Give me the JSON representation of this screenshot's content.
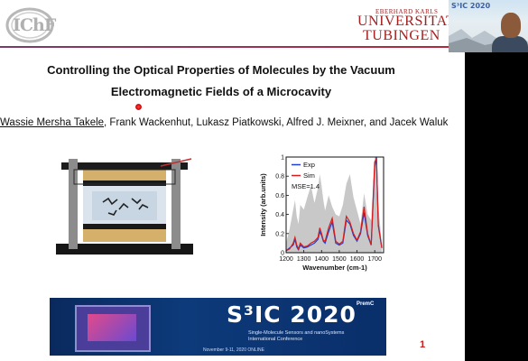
{
  "header": {
    "lab_logo_text": "IChF",
    "university_small": "EBERHARD KARLS",
    "university_line1": "UNIVERSITAT",
    "university_line2": "TUBINGEN"
  },
  "webcam": {
    "overlay_logo": "S³IC 2020"
  },
  "slide": {
    "title_line1": "Controlling the Optical Properties of Molecules by the Vacuum",
    "title_line2": "Electromagnetic Fields of a Microcavity",
    "author_first": "Wassie Mersha Takele",
    "author_rest": ", Frank Wackenhut, Lukasz Piatkowski, Alfred J. Meixner, and Jacek Waluk",
    "page_number": "1"
  },
  "banner": {
    "brand": "S³IC 2020",
    "subtitle_line1": "Single-Molecule Sensors and nanoSystems",
    "subtitle_line2": "International Conference",
    "date": "November 9-11, 2020   ONLINE",
    "partner": "PremC"
  },
  "chart_data": {
    "type": "line",
    "xlabel": "Wavenumber (cm-1)",
    "ylabel": "Intensity (arb.units)",
    "xlim": [
      1200,
      1750
    ],
    "ylim": [
      0,
      1.0
    ],
    "x_ticks": [
      1200,
      1300,
      1400,
      1500,
      1600,
      1700
    ],
    "y_ticks": [
      0,
      0.2,
      0.4,
      0.6,
      0.8,
      1.0
    ],
    "annotation": "MSE=1.4",
    "legend_position": "top-left",
    "colors": {
      "exp": "#1f3fd4",
      "sim": "#d81b1b",
      "background": "#c8c8c8"
    },
    "x": [
      1200,
      1220,
      1240,
      1250,
      1260,
      1270,
      1280,
      1300,
      1320,
      1340,
      1360,
      1380,
      1390,
      1400,
      1410,
      1420,
      1440,
      1460,
      1480,
      1500,
      1520,
      1540,
      1560,
      1580,
      1600,
      1620,
      1640,
      1660,
      1680,
      1700,
      1710,
      1720,
      1740
    ],
    "series": [
      {
        "name": "Exp",
        "values": [
          0.02,
          0.05,
          0.08,
          0.14,
          0.06,
          0.03,
          0.08,
          0.05,
          0.06,
          0.08,
          0.1,
          0.14,
          0.22,
          0.18,
          0.12,
          0.1,
          0.22,
          0.32,
          0.1,
          0.08,
          0.1,
          0.34,
          0.3,
          0.18,
          0.12,
          0.2,
          0.42,
          0.18,
          0.08,
          0.9,
          1.0,
          0.3,
          0.05
        ]
      },
      {
        "name": "Sim",
        "values": [
          0.02,
          0.04,
          0.1,
          0.16,
          0.08,
          0.04,
          0.1,
          0.06,
          0.07,
          0.1,
          0.12,
          0.16,
          0.26,
          0.2,
          0.13,
          0.12,
          0.26,
          0.36,
          0.12,
          0.09,
          0.12,
          0.38,
          0.32,
          0.2,
          0.13,
          0.22,
          0.48,
          0.2,
          0.08,
          0.95,
          0.98,
          0.28,
          0.05
        ]
      },
      {
        "name": "",
        "values": [
          0.1,
          0.25,
          0.45,
          0.55,
          0.38,
          0.3,
          0.5,
          0.45,
          0.58,
          0.7,
          0.52,
          0.68,
          0.82,
          0.7,
          0.55,
          0.44,
          0.6,
          0.48,
          0.4,
          0.38,
          0.5,
          0.72,
          0.82,
          0.58,
          0.44,
          0.3,
          0.62,
          0.4,
          0.34,
          1.0,
          1.0,
          0.5,
          0.1
        ]
      }
    ]
  }
}
